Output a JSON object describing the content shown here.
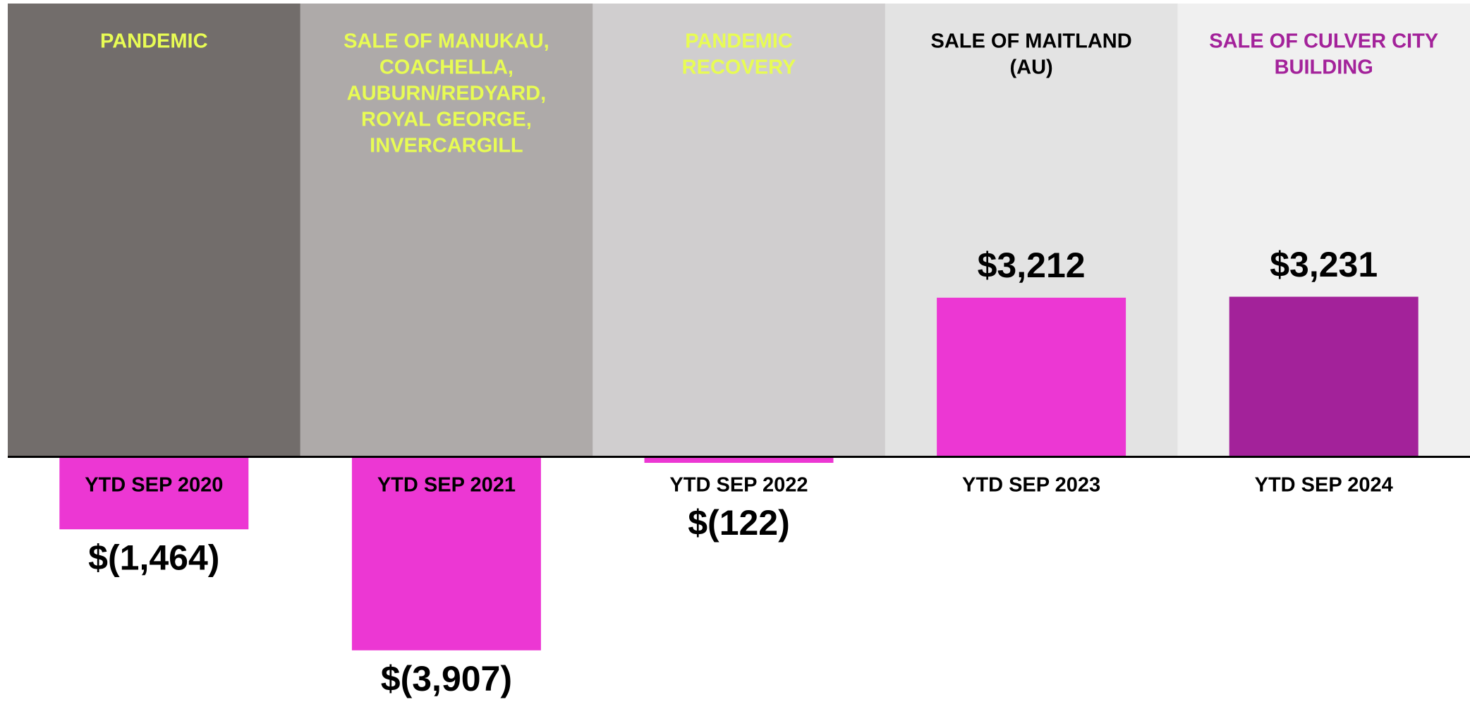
{
  "chart_data": {
    "type": "bar",
    "categories": [
      "YTD SEP 2020",
      "YTD SEP 2021",
      "YTD SEP 2022",
      "YTD SEP 2023",
      "YTD SEP 2024"
    ],
    "values": [
      -1464,
      -3907,
      -122,
      3212,
      3231
    ],
    "value_labels": [
      "$(1,464)",
      "$(3,907)",
      "$(122)",
      "$3,212",
      "$3,231"
    ],
    "colors": [
      "#ec37d3",
      "#ec37d3",
      "#ec37d3",
      "#ec37d3",
      "#a3229a"
    ],
    "band_colors": [
      "#726d6b",
      "#aeaaa9",
      "#d0cecf",
      "#e3e3e3",
      "#f0f0f0"
    ],
    "annotations": [
      {
        "lines": [
          "PANDEMIC"
        ],
        "color": "#e8fc54"
      },
      {
        "lines": [
          "SALE OF MANUKAU,",
          "COACHELLA,",
          "AUBURN/REDYARD,",
          "ROYAL GEORGE,",
          "INVERCARGILL"
        ],
        "color": "#e8fc54"
      },
      {
        "lines": [
          "PANDEMIC",
          "RECOVERY"
        ],
        "color": "#e8fc54"
      },
      {
        "lines": [
          "SALE OF MAITLAND",
          "(AU)"
        ],
        "color": "#000000"
      },
      {
        "lines": [
          "SALE OF CULVER CITY",
          "BUILDING"
        ],
        "color": "#a3229a"
      }
    ],
    "ylim": [
      -4950,
      9150
    ]
  }
}
